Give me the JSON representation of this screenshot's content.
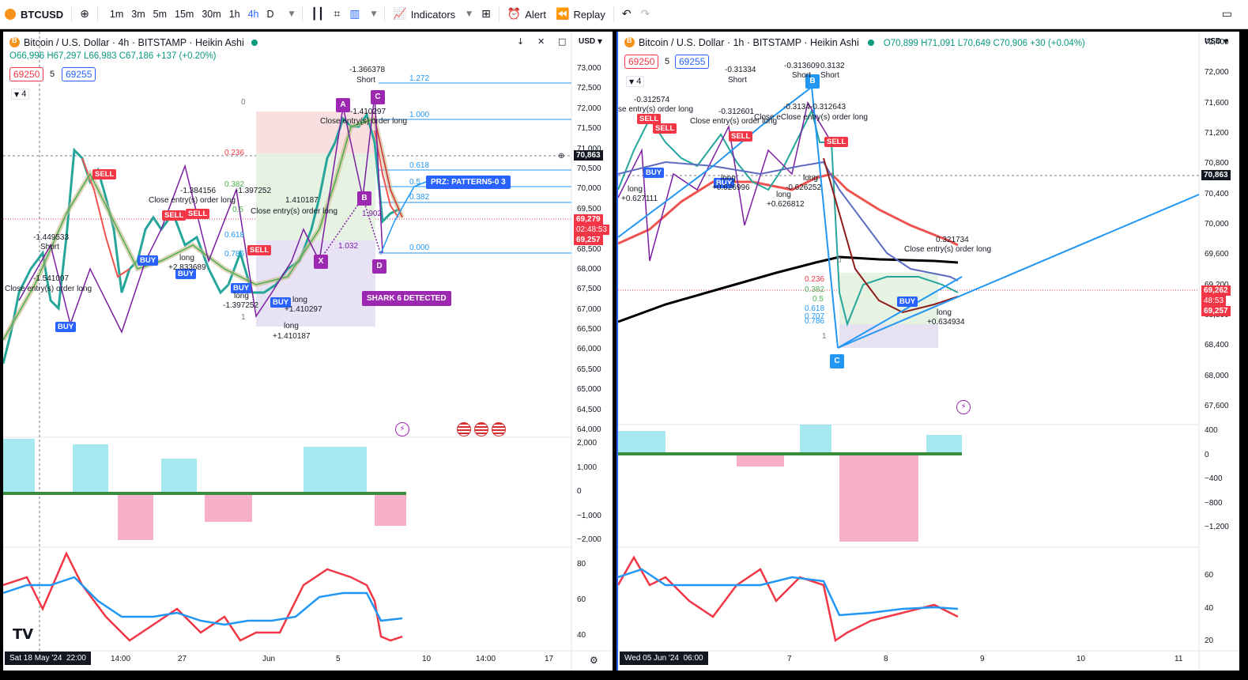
{
  "toolbar": {
    "symbol": "BTCUSD",
    "intervals": [
      "1m",
      "3m",
      "5m",
      "15m",
      "30m",
      "1h",
      "4h",
      "D"
    ],
    "active_interval": "4h",
    "indicators_label": "Indicators",
    "alert_label": "Alert",
    "replay_label": "Replay"
  },
  "left": {
    "title": "Bitcoin / U.S. Dollar · 4h · BITSTAMP · Heikin Ashi",
    "ohlc": "O66,996 H67,297 L66,983 C67,186 +137 (+0.20%)",
    "tag_red": "69250",
    "tag_mid": "5",
    "tag_blue": "69255",
    "indicator_count": "4",
    "currency": "USD",
    "price_ticks": [
      "73,000",
      "72,500",
      "72,000",
      "71,500",
      "71,000",
      "70,500",
      "70,000",
      "69,500",
      "69,000",
      "68,500",
      "68,000",
      "67,500",
      "67,000",
      "66,500",
      "66,000",
      "65,500",
      "65,000",
      "64,500",
      "64,000"
    ],
    "cursor_price": "70,863",
    "last_price": "69,279",
    "countdown": "02:48:53",
    "bid_price": "69,257",
    "osc_ticks": [
      "2,000",
      "1,000",
      "0",
      "−1,000",
      "−2,000"
    ],
    "rsi_ticks": [
      "80",
      "60",
      "40"
    ],
    "time_labels": [
      "14:00",
      "27",
      "Jun",
      "5",
      "10",
      "14:00",
      "17"
    ],
    "date_badge": "Sat 18 May '24",
    "time_badge": "22:00",
    "prz_label": "PRZ: PATTERN5-0 3",
    "shark_label": "SHARK 6 DETECTED",
    "fib_levels": [
      "1.272",
      "1.000",
      "0.618",
      "0.5",
      "0.382",
      "0.000"
    ],
    "fib_left": [
      "0",
      "0.236",
      "0.382",
      "0.5",
      "0.618",
      "0.786",
      "1"
    ],
    "annotations": {
      "a1": "-1.366378",
      "a1s": "Short",
      "a2": "-1.410297",
      "a3": "Close entry(s) order long",
      "a4": "-1.384156",
      "a5": "Close entry(s) order long",
      "a6": "-1.397252",
      "a7": "Close entry(s) order long",
      "a8": "1.410187",
      "a9": "-1.449533",
      "a9s": "Short",
      "a10": "-1.541007",
      "a11": "Close entry(s) order long",
      "a12": "long",
      "a13": "+2.833689",
      "a14": "long",
      "a15": "-1.397252",
      "a16": "long",
      "a17": "+1.410297",
      "a18": "long",
      "a19": "+1.410187",
      "a20": "1.032",
      "a21": "1.902",
      "a22": "Close entry(s) order long"
    }
  },
  "right": {
    "title": "Bitcoin / U.S. Dollar · 1h · BITSTAMP · Heikin Ashi",
    "ohlc": "O70,899 H71,091 L70,649 C70,906 +30 (+0.04%)",
    "tag_red": "69250",
    "tag_mid": "5",
    "tag_blue": "69255",
    "indicator_count": "4",
    "currency": "USD",
    "price_ticks": [
      "72,400",
      "72,000",
      "71,600",
      "71,200",
      "70,800",
      "70,400",
      "70,000",
      "69,600",
      "69,200",
      "68,800",
      "68,400",
      "68,000",
      "67,600"
    ],
    "cursor_price": "70,863",
    "last_price": "69,262",
    "countdown": "48:53",
    "bid_price": "69,257",
    "osc_ticks": [
      "400",
      "0",
      "−400",
      "−800",
      "−1,200"
    ],
    "rsi_ticks": [
      "60",
      "40",
      "20"
    ],
    "time_labels": [
      "7",
      "8",
      "9",
      "10",
      "11"
    ],
    "date_badge": "Wed 05 Jun '24",
    "time_badge": "06:00",
    "fib_levels": [
      "0",
      "0.236",
      "0.382",
      "0.5",
      "0.618",
      "0.707",
      "0.786",
      "1"
    ],
    "annotations": {
      "b1": "-0.31334",
      "b1s": "Short",
      "b2": "-0.313609",
      "b2b": "0.3132",
      "b2s": "Short",
      "b2t": "Short",
      "b3": "-0.312574",
      "b4": "se entry(s) order long",
      "b5": "-0.312601",
      "b6": "Close entry(s) order long",
      "b7": "-0.3134",
      "b7b": "-0.312643",
      "b8": "Close eClose entry(s) order long",
      "b9": "long",
      "b10": "+0.626996",
      "b11": "long",
      "b12": "-0.626252",
      "b13": "long",
      "b14": "+0.626812",
      "b15": "long",
      "b16": "+0.627111",
      "b17": "0.321734",
      "b18": "Close entry(s) order long",
      "b19": "long",
      "b20": "+0.634934"
    }
  }
}
